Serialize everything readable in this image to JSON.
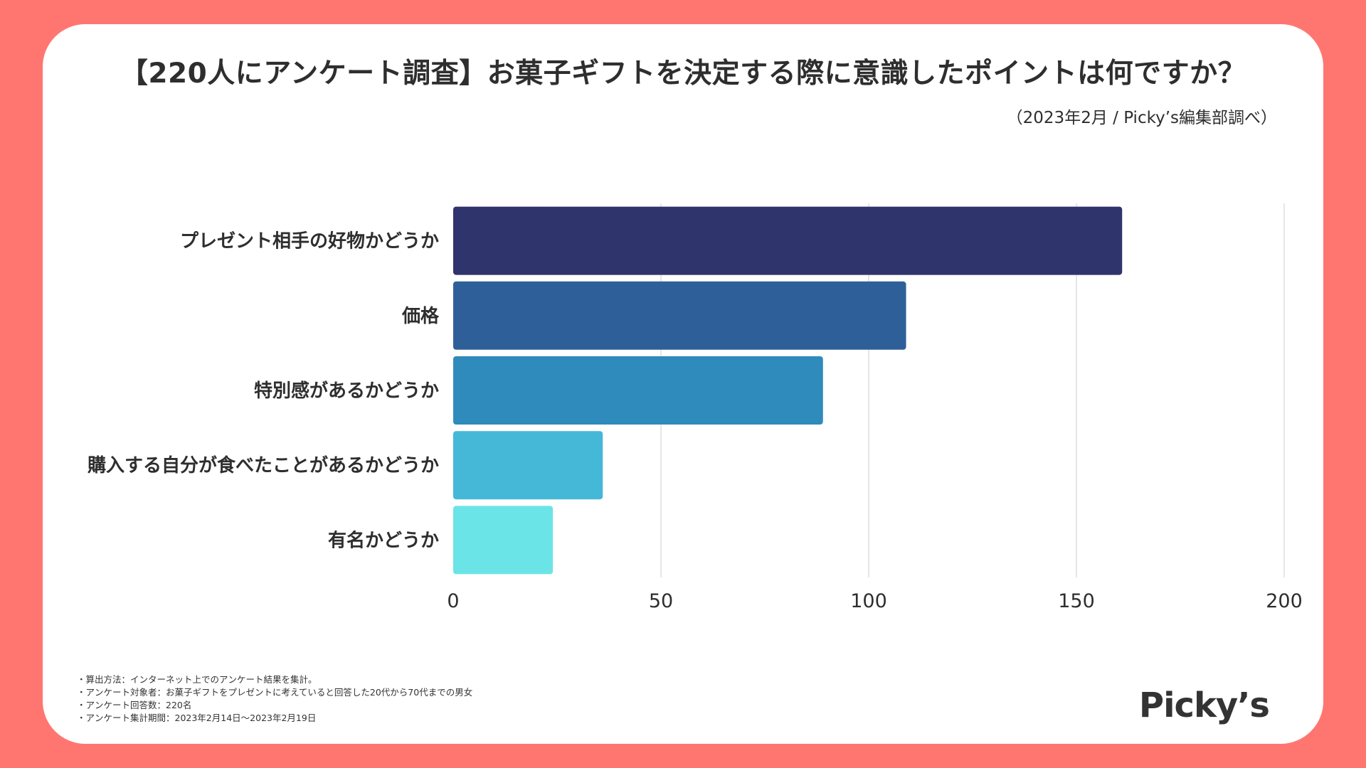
{
  "title": "【220人にアンケート調査】お菓子ギフトを決定する際に意識したポイントは何ですか？",
  "source": "（2023年2月 / Picky’s編集部調べ）",
  "notes": [
    "・算出方法：インターネット上でのアンケート結果を集計。",
    "・アンケート対象者：お菓子ギフトをプレゼントに考えていると回答した20代から70代までの男女",
    "・アンケート回答数：220名",
    "・アンケート集計期間：2023年2月14日〜2023年2月19日"
  ],
  "logo": "Picky’s",
  "chart_data": {
    "type": "bar",
    "orientation": "horizontal",
    "title": "【220人にアンケート調査】お菓子ギフトを決定する際に意識したポイントは何ですか？",
    "categories": [
      "プレゼント相手の好物かどうか",
      "価格",
      "特別感があるかどうか",
      "購入する自分が食べたことがあるかどうか",
      "有名かどうか"
    ],
    "values": [
      161,
      109,
      89,
      36,
      24
    ],
    "colors": [
      "#30346c",
      "#2f5f98",
      "#2e8bbb",
      "#45b8d7",
      "#6be4e8"
    ],
    "xlim": [
      0,
      200
    ],
    "xticks": [
      "0",
      "50",
      "100",
      "150",
      "200"
    ],
    "xlabel": "",
    "ylabel": "",
    "grid": true
  }
}
